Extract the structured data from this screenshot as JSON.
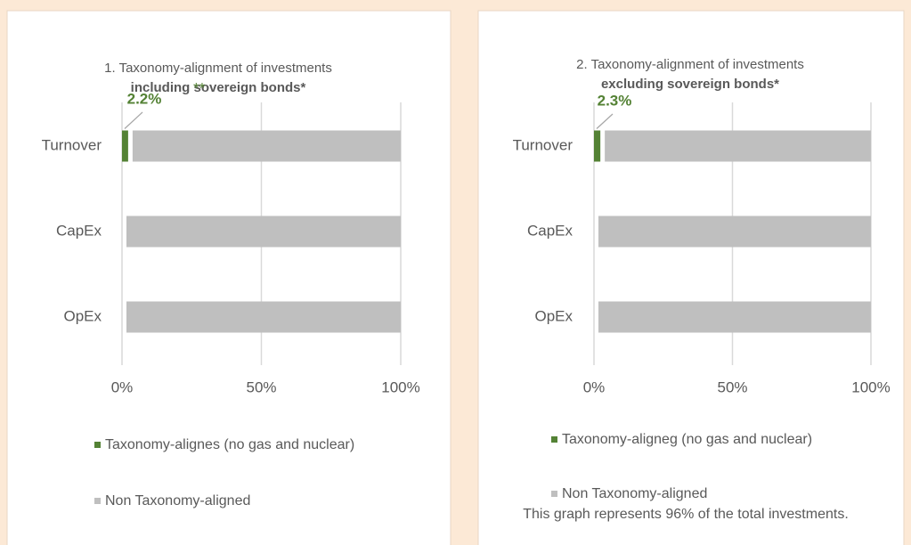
{
  "chart_data": [
    {
      "type": "stacked-bar-horizontal",
      "title": "1. Taxonomy-alignment of investments",
      "subtitle": "including sovereign bonds*",
      "annotation": "**",
      "categories": [
        "Turnover",
        "CapEx",
        "OpEx"
      ],
      "series": [
        {
          "name": "Taxonomy-alignes (no gas and nuclear)",
          "color": "#548235",
          "values": [
            2.2,
            0,
            0
          ],
          "value_labels": [
            "2.2%",
            null,
            null
          ]
        },
        {
          "name": "Non Taxonomy-aligned",
          "color": "#bfbfbf",
          "values": [
            97.8,
            100,
            100
          ]
        }
      ],
      "xlim": [
        0,
        100
      ],
      "xticks": [
        {
          "value": 0,
          "label": "0%"
        },
        {
          "value": 50,
          "label": "50%"
        },
        {
          "value": 100,
          "label": "100%"
        }
      ],
      "grid": true,
      "legend": "bottom"
    },
    {
      "type": "stacked-bar-horizontal",
      "title": "2. Taxonomy-alignment of investments",
      "subtitle": "excluding sovereign bonds*",
      "note": "This graph represents 96% of the total investments.",
      "categories": [
        "Turnover",
        "CapEx",
        "OpEx"
      ],
      "series": [
        {
          "name": "Taxonomy-aligneg (no gas and nuclear)",
          "color": "#548235",
          "values": [
            2.3,
            0,
            0
          ],
          "value_labels": [
            "2.3%",
            null,
            null
          ]
        },
        {
          "name": "Non Taxonomy-aligned",
          "color": "#bfbfbf",
          "values": [
            97.7,
            100,
            100
          ]
        }
      ],
      "xlim": [
        0,
        100
      ],
      "xticks": [
        {
          "value": 0,
          "label": "0%"
        },
        {
          "value": 50,
          "label": "50%"
        },
        {
          "value": 100,
          "label": "100%"
        }
      ],
      "grid": true,
      "legend": "bottom"
    }
  ]
}
